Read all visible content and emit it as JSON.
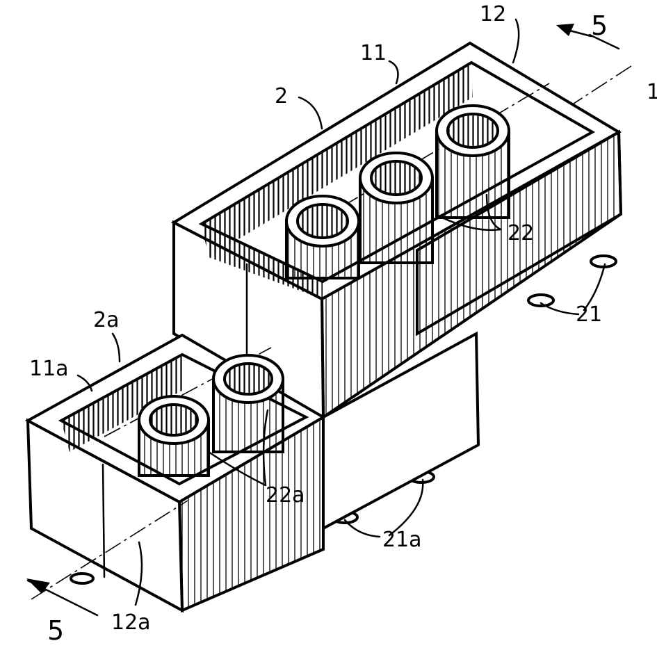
{
  "figure": {
    "colors": {
      "ink": "#000000",
      "paper": "#ffffff"
    },
    "labels": {
      "section_top": "5",
      "section_bottom": "5",
      "ref_1": "1",
      "ref_2": "2",
      "ref_11": "11",
      "ref_12": "12",
      "ref_22": "22",
      "ref_21": "21",
      "ref_2a": "2a",
      "ref_11a": "11a",
      "ref_22a": "22a",
      "ref_21a": "21a",
      "ref_12a": "12a"
    }
  }
}
